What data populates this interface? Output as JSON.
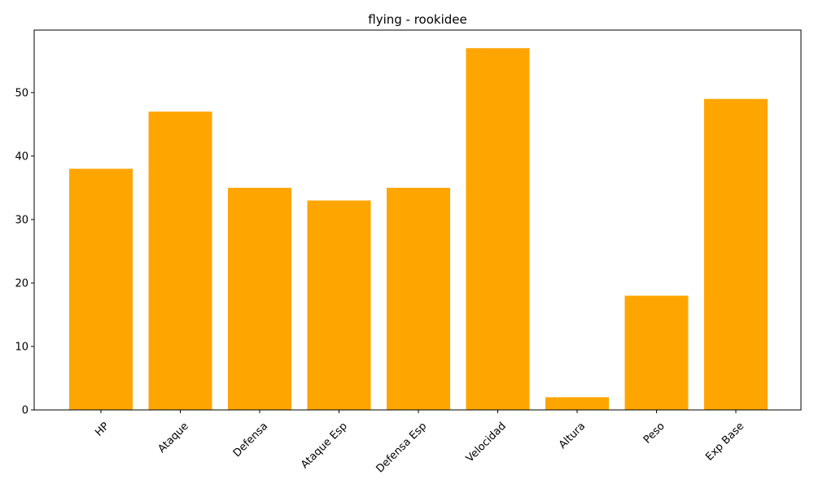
{
  "chart_data": {
    "type": "bar",
    "title": "flying - rookidee",
    "xlabel": "",
    "ylabel": "",
    "categories": [
      "HP",
      "Ataque",
      "Defensa",
      "Ataque Esp",
      "Defensa Esp",
      "Velocidad",
      "Altura",
      "Peso",
      "Exp Base"
    ],
    "values": [
      38,
      47,
      35,
      33,
      35,
      57,
      2,
      18,
      49
    ],
    "ylim": [
      0,
      59.85
    ],
    "yticks": [
      0,
      10,
      20,
      30,
      40,
      50
    ],
    "bar_color": "#ffa500",
    "grid": false,
    "legend": "none"
  }
}
